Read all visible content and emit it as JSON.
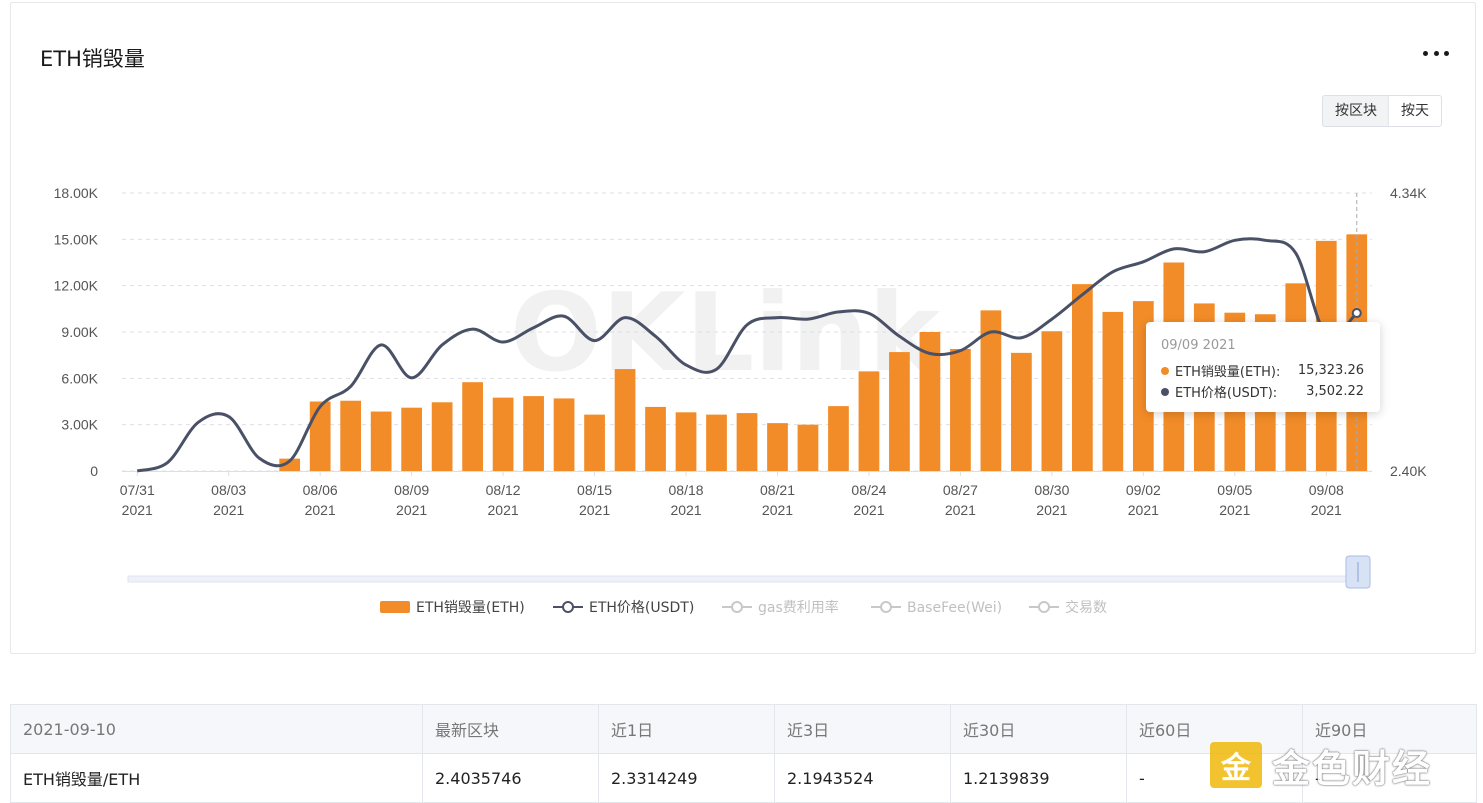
{
  "card": {
    "title": "ETH销毁量",
    "toggle": [
      "按区块",
      "按天"
    ],
    "toggle_active": 1
  },
  "watermark": "OKLink",
  "chart_data": {
    "type": "bar+line",
    "y_left": {
      "ticks": [
        "0",
        "3.00K",
        "6.00K",
        "9.00K",
        "12.00K",
        "15.00K",
        "18.00K"
      ],
      "range": [
        0,
        18000
      ]
    },
    "y_right": {
      "ticks": [
        "2.40K",
        "4.34K"
      ],
      "range": [
        2400,
        4340
      ]
    },
    "x_ticks": [
      {
        "date": "07/31",
        "year": "2021"
      },
      {
        "date": "08/03",
        "year": "2021"
      },
      {
        "date": "08/06",
        "year": "2021"
      },
      {
        "date": "08/09",
        "year": "2021"
      },
      {
        "date": "08/12",
        "year": "2021"
      },
      {
        "date": "08/15",
        "year": "2021"
      },
      {
        "date": "08/18",
        "year": "2021"
      },
      {
        "date": "08/21",
        "year": "2021"
      },
      {
        "date": "08/24",
        "year": "2021"
      },
      {
        "date": "08/27",
        "year": "2021"
      },
      {
        "date": "08/30",
        "year": "2021"
      },
      {
        "date": "09/02",
        "year": "2021"
      },
      {
        "date": "09/05",
        "year": "2021"
      },
      {
        "date": "09/08",
        "year": "2021"
      }
    ],
    "categories": [
      "07/31",
      "08/01",
      "08/02",
      "08/03",
      "08/04",
      "08/05",
      "08/06",
      "08/07",
      "08/08",
      "08/09",
      "08/10",
      "08/11",
      "08/12",
      "08/13",
      "08/14",
      "08/15",
      "08/16",
      "08/17",
      "08/18",
      "08/19",
      "08/20",
      "08/21",
      "08/22",
      "08/23",
      "08/24",
      "08/25",
      "08/26",
      "08/27",
      "08/28",
      "08/29",
      "08/30",
      "08/31",
      "09/01",
      "09/02",
      "09/03",
      "09/04",
      "09/05",
      "09/06",
      "09/07",
      "09/08",
      "09/09"
    ],
    "series": [
      {
        "name": "ETH销毁量(ETH)",
        "type": "bar",
        "axis": "left",
        "color": "#f28c28",
        "values": [
          0,
          0,
          0,
          0,
          0,
          800,
          4500,
          4550,
          3850,
          4100,
          4450,
          5750,
          4750,
          4850,
          4700,
          3650,
          6600,
          4150,
          3800,
          3650,
          3750,
          3100,
          3000,
          4200,
          6450,
          7700,
          9000,
          7900,
          10400,
          7650,
          9050,
          12100,
          10300,
          11000,
          13500,
          10850,
          10250,
          10150,
          12150,
          14900,
          15323.26
        ]
      },
      {
        "name": "ETH价格(USDT)",
        "type": "line",
        "axis": "right",
        "color": "#4a5066",
        "values": [
          2400,
          2460,
          2740,
          2780,
          2490,
          2470,
          2850,
          2990,
          3280,
          3050,
          3280,
          3390,
          3300,
          3400,
          3480,
          3310,
          3470,
          3340,
          3140,
          3110,
          3420,
          3470,
          3460,
          3510,
          3500,
          3340,
          3220,
          3240,
          3370,
          3330,
          3460,
          3630,
          3790,
          3860,
          3950,
          3930,
          4010,
          4010,
          3920,
          3350,
          3502.22
        ]
      }
    ],
    "legend": [
      {
        "label": "ETH销毁量(ETH)",
        "active": true,
        "kind": "bar",
        "color": "#f28c28"
      },
      {
        "label": "ETH价格(USDT)",
        "active": true,
        "kind": "line",
        "color": "#4a5066"
      },
      {
        "label": "gas费利用率",
        "active": false,
        "kind": "line",
        "color": "#c8c8c8"
      },
      {
        "label": "BaseFee(Wei)",
        "active": false,
        "kind": "line",
        "color": "#c8c8c8"
      },
      {
        "label": "交易数",
        "active": false,
        "kind": "line",
        "color": "#c8c8c8"
      }
    ],
    "legend_position": "bottom",
    "grid": true
  },
  "tooltip": {
    "date": "09/09 2021",
    "rows": [
      {
        "label": "ETH销毁量(ETH):",
        "value": "15,323.26",
        "color": "#f28c28"
      },
      {
        "label": "ETH价格(USDT):",
        "value": "3,502.22",
        "color": "#4a5066"
      }
    ]
  },
  "table": {
    "headers": [
      "2021-09-10",
      "最新区块",
      "近1日",
      "近3日",
      "近30日",
      "近60日",
      "近90日"
    ],
    "rows": [
      [
        "ETH销毁量/ETH",
        "2.4035746",
        "2.3314249",
        "2.1943524",
        "1.2139839",
        "-",
        "-"
      ]
    ]
  },
  "brand": {
    "mark": "金",
    "text": "金色财经"
  }
}
